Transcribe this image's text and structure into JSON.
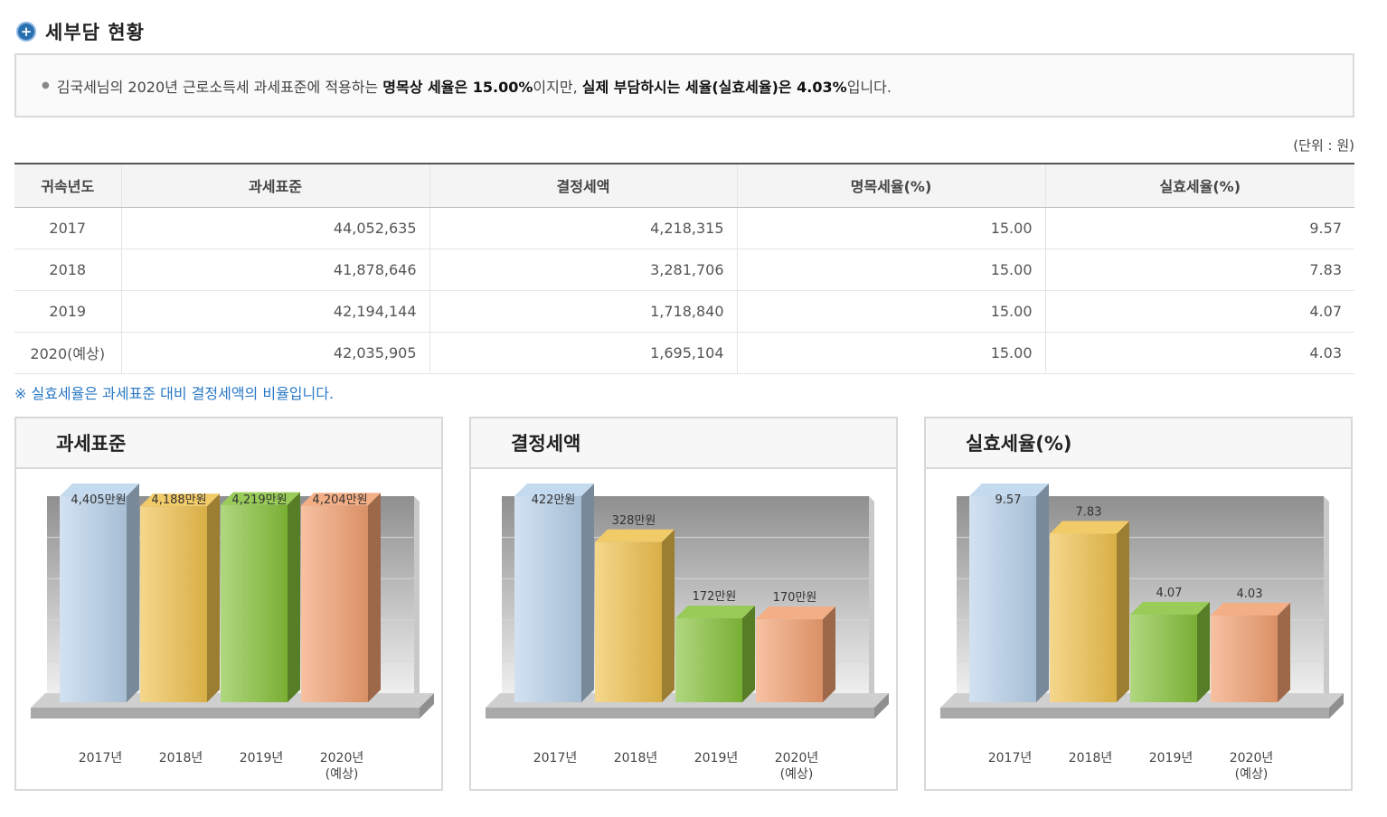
{
  "section": {
    "title": "세부담 현황",
    "icon": "plus-circle-icon"
  },
  "summary": {
    "part1": "김국세님의 2020년 근로소득세 과세표준에 적용하는 ",
    "bold1": "명목상 세율은 15.00%",
    "part2": "이지만, ",
    "bold2": "실제 부담하시는 세율(실효세율)은 4.03%",
    "part3": "입니다."
  },
  "unit_label": "(단위 : 원)",
  "table": {
    "headers": [
      "귀속년도",
      "과세표준",
      "결정세액",
      "명목세율(%)",
      "실효세율(%)"
    ],
    "rows": [
      [
        "2017",
        "44,052,635",
        "4,218,315",
        "15.00",
        "9.57"
      ],
      [
        "2018",
        "41,878,646",
        "3,281,706",
        "15.00",
        "7.83"
      ],
      [
        "2019",
        "42,194,144",
        "1,718,840",
        "15.00",
        "4.07"
      ],
      [
        "2020(예상)",
        "42,035,905",
        "1,695,104",
        "15.00",
        "4.03"
      ]
    ]
  },
  "note": "※ 실효세율은 과세표준 대비 결정세액의 비율입니다.",
  "colors": {
    "bar1": "#b9d3ec",
    "bar2": "#f0c24e",
    "bar3": "#86c23a",
    "bar4": "#f2a070",
    "accent": "#2a78c4"
  },
  "chart_data": [
    {
      "type": "bar",
      "title": "과세표준",
      "categories": [
        "2017년",
        "2018년",
        "2019년",
        "2020년"
      ],
      "category_sub": [
        "",
        "",
        "",
        "(예상)"
      ],
      "values": [
        4405,
        4188,
        4219,
        4204
      ],
      "value_labels": [
        "4,405만원",
        "4,188만원",
        "4,219만원",
        "4,204만원"
      ],
      "ylim": [
        0,
        4405
      ]
    },
    {
      "type": "bar",
      "title": "결정세액",
      "categories": [
        "2017년",
        "2018년",
        "2019년",
        "2020년"
      ],
      "category_sub": [
        "",
        "",
        "",
        "(예상)"
      ],
      "values": [
        422,
        328,
        172,
        170
      ],
      "value_labels": [
        "422만원",
        "328만원",
        "172만원",
        "170만원"
      ],
      "ylim": [
        0,
        422
      ]
    },
    {
      "type": "bar",
      "title": "실효세율(%)",
      "categories": [
        "2017년",
        "2018년",
        "2019년",
        "2020년"
      ],
      "category_sub": [
        "",
        "",
        "",
        "(예상)"
      ],
      "values": [
        9.57,
        7.83,
        4.07,
        4.03
      ],
      "value_labels": [
        "9.57",
        "7.83",
        "4.07",
        "4.03"
      ],
      "ylim": [
        0,
        9.57
      ]
    }
  ]
}
